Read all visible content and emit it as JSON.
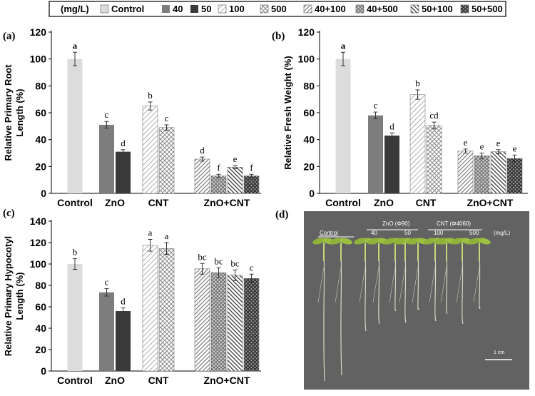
{
  "legend": {
    "unit": "(mg/L)",
    "items": [
      {
        "key": "control",
        "label": "Control"
      },
      {
        "key": "z40",
        "label": "40"
      },
      {
        "key": "z50",
        "label": "50"
      },
      {
        "key": "c100",
        "label": "100"
      },
      {
        "key": "c500",
        "label": "500"
      },
      {
        "key": "zc40_100",
        "label": "40+100"
      },
      {
        "key": "zc40_500",
        "label": "40+500"
      },
      {
        "key": "zc50_100",
        "label": "50+100"
      },
      {
        "key": "zc50_500",
        "label": "50+500"
      }
    ]
  },
  "chart_data": [
    {
      "panel": "(a)",
      "type": "bar",
      "ylabel": "Relative Primary Root Length (%)",
      "ylim": [
        0,
        120
      ],
      "yticks": [
        0,
        20,
        40,
        60,
        80,
        100,
        120
      ],
      "categories": [
        "Control",
        "ZnO",
        "CNT",
        "ZnO+CNT"
      ],
      "bars": [
        {
          "series": "control",
          "group": 0,
          "value": 100,
          "error": 5,
          "label": "a"
        },
        {
          "series": "z40",
          "group": 1,
          "value": 51,
          "error": 2.5,
          "label": "c"
        },
        {
          "series": "z50",
          "group": 1,
          "value": 31,
          "error": 1.5,
          "label": "d"
        },
        {
          "series": "c100",
          "group": 2,
          "value": 65,
          "error": 3,
          "label": "b"
        },
        {
          "series": "c500",
          "group": 2,
          "value": 49,
          "error": 2,
          "label": "c"
        },
        {
          "series": "zc40_100",
          "group": 3,
          "value": 25.5,
          "error": 1.5,
          "label": "d"
        },
        {
          "series": "zc40_500",
          "group": 3,
          "value": 13,
          "error": 1.2,
          "label": "f"
        },
        {
          "series": "zc50_100",
          "group": 3,
          "value": 19.5,
          "error": 1.2,
          "label": "e"
        },
        {
          "series": "zc50_500",
          "group": 3,
          "value": 13,
          "error": 1.2,
          "label": "f"
        }
      ]
    },
    {
      "panel": "(b)",
      "type": "bar",
      "ylabel": "Relative Fresh Weight (%)",
      "ylim": [
        0,
        120
      ],
      "yticks": [
        0,
        20,
        40,
        60,
        80,
        100,
        120
      ],
      "categories": [
        "Control",
        "ZnO",
        "CNT",
        "ZnO+CNT"
      ],
      "bars": [
        {
          "series": "control",
          "group": 0,
          "value": 100,
          "error": 5,
          "label": "a"
        },
        {
          "series": "z40",
          "group": 1,
          "value": 58,
          "error": 2.5,
          "label": "c"
        },
        {
          "series": "z50",
          "group": 1,
          "value": 43,
          "error": 2,
          "label": "d"
        },
        {
          "series": "c100",
          "group": 2,
          "value": 73.5,
          "error": 3.5,
          "label": "b"
        },
        {
          "series": "c500",
          "group": 2,
          "value": 50.5,
          "error": 2.5,
          "label": "cd"
        },
        {
          "series": "zc40_100",
          "group": 3,
          "value": 31.5,
          "error": 1.5,
          "label": "e"
        },
        {
          "series": "zc40_500",
          "group": 3,
          "value": 28,
          "error": 2,
          "label": "e"
        },
        {
          "series": "zc50_100",
          "group": 3,
          "value": 31,
          "error": 1.5,
          "label": "e"
        },
        {
          "series": "zc50_500",
          "group": 3,
          "value": 26,
          "error": 2.5,
          "label": "e"
        }
      ]
    },
    {
      "panel": "(c)",
      "type": "bar",
      "ylabel": "Relative Primary Hypocotyl Length (%)",
      "ylim": [
        0,
        140
      ],
      "yticks": [
        0,
        20,
        40,
        60,
        80,
        100,
        120,
        140
      ],
      "categories": [
        "Control",
        "ZnO",
        "CNT",
        "ZnO+CNT"
      ],
      "bars": [
        {
          "series": "control",
          "group": 0,
          "value": 100,
          "error": 5,
          "label": "b"
        },
        {
          "series": "z40",
          "group": 1,
          "value": 73.5,
          "error": 3.5,
          "label": "c"
        },
        {
          "series": "z50",
          "group": 1,
          "value": 56,
          "error": 3,
          "label": "d"
        },
        {
          "series": "c100",
          "group": 2,
          "value": 117.5,
          "error": 5.5,
          "label": "a"
        },
        {
          "series": "c500",
          "group": 2,
          "value": 114.5,
          "error": 5.5,
          "label": "a"
        },
        {
          "series": "zc40_100",
          "group": 3,
          "value": 95.5,
          "error": 5,
          "label": "bc"
        },
        {
          "series": "zc40_500",
          "group": 3,
          "value": 92,
          "error": 4.5,
          "label": "bc"
        },
        {
          "series": "zc50_100",
          "group": 3,
          "value": 89.5,
          "error": 5,
          "label": "bc"
        },
        {
          "series": "zc50_500",
          "group": 3,
          "value": 86.5,
          "error": 4,
          "label": "c"
        }
      ]
    }
  ],
  "photo": {
    "panel": "(d)",
    "header_zno": "ZnO (Φ90)",
    "header_cnt": "CNT (Φ4060)",
    "label_control": "Control",
    "label_40": "40",
    "label_50": "50",
    "label_100": "100",
    "label_500": "500",
    "unit": "(mg/L)",
    "scale_bar": "1 cm"
  }
}
